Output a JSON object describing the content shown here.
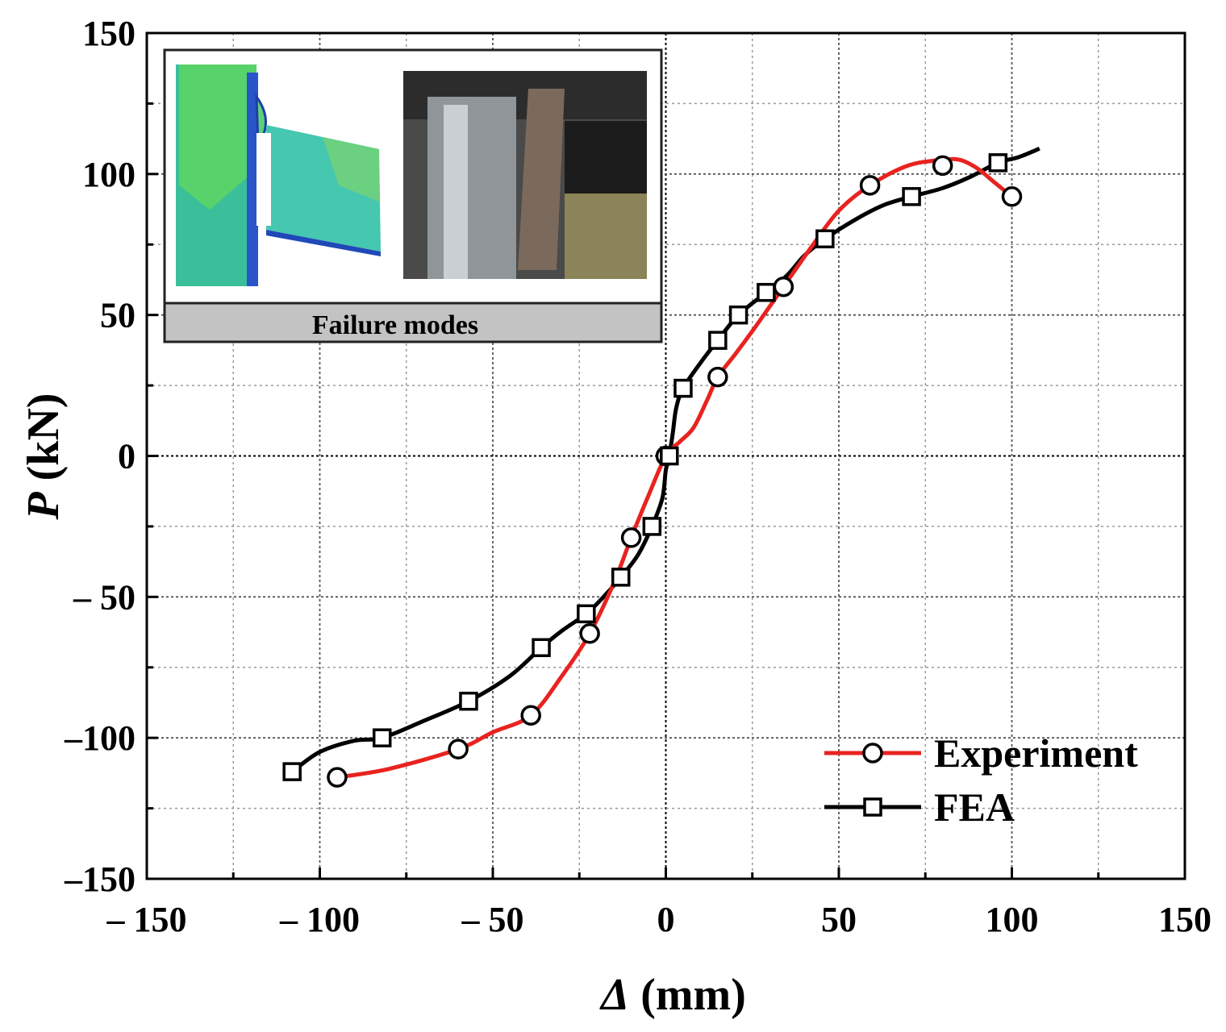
{
  "chart_data": {
    "type": "line",
    "xlabel_symbol": "Δ",
    "xlabel_unit": " (mm)",
    "ylabel_symbol": "P",
    "ylabel_unit": " (kN)",
    "xlim": [
      -150,
      150
    ],
    "ylim": [
      -150,
      150
    ],
    "xticks": [
      -150,
      -100,
      -50,
      0,
      50,
      100,
      150
    ],
    "yticks": [
      -150,
      -100,
      -50,
      0,
      50,
      100,
      150
    ],
    "xtick_labels": [
      "– 150",
      "– 100",
      "– 50",
      "0",
      "50",
      "100",
      "150"
    ],
    "ytick_labels": [
      "–150",
      "–100",
      "– 50",
      "0",
      "50",
      "100",
      "150"
    ],
    "grid": true,
    "legend_position": "bottom-right",
    "series": [
      {
        "name": "Experiment",
        "color": "#e8231f",
        "marker": "circle",
        "x": [
          -95,
          -60,
          -39,
          -22,
          -10,
          0,
          15,
          34,
          59,
          80,
          100
        ],
        "y": [
          -114,
          -104,
          -92,
          -63,
          -29,
          0,
          28,
          60,
          96,
          103,
          92
        ],
        "curve_x": [
          -95,
          -80,
          -60,
          -50,
          -39,
          -30,
          -22,
          -15,
          -10,
          -5,
          0,
          4,
          8,
          12,
          15,
          20,
          26,
          34,
          42,
          50,
          59,
          70,
          80,
          85,
          90,
          95,
          100
        ],
        "curve_y": [
          -114,
          -111,
          -104,
          -98,
          -92,
          -78,
          -63,
          -45,
          -29,
          -14,
          0,
          5,
          10,
          20,
          28,
          36,
          46,
          60,
          74,
          87,
          96,
          103,
          105,
          105,
          102,
          97,
          92
        ]
      },
      {
        "name": "FEA",
        "color": "#000000",
        "marker": "square",
        "x": [
          -108,
          -82,
          -57,
          -36,
          -23,
          -13,
          -4,
          1,
          5,
          15,
          21,
          29,
          46,
          71,
          96
        ],
        "y": [
          -112,
          -100,
          -87,
          -68,
          -56,
          -43,
          -25,
          0,
          24,
          41,
          50,
          58,
          77,
          92,
          104
        ],
        "curve_x": [
          -108,
          -100,
          -90,
          -82,
          -70,
          -57,
          -45,
          -36,
          -30,
          -23,
          -18,
          -13,
          -8,
          -4,
          -1,
          0,
          1,
          2,
          3,
          5,
          10,
          15,
          21,
          29,
          35,
          40,
          46,
          55,
          63,
          71,
          80,
          88,
          96,
          102,
          108
        ],
        "curve_y": [
          -112,
          -105,
          -101,
          -100,
          -94,
          -87,
          -78,
          -68,
          -62,
          -56,
          -50,
          -43,
          -35,
          -25,
          -15,
          -5,
          0,
          8,
          17,
          24,
          33,
          41,
          50,
          58,
          64,
          71,
          77,
          84,
          89,
          92,
          95,
          99,
          104,
          106,
          109
        ]
      }
    ]
  },
  "inset": {
    "caption": "Failure modes"
  }
}
